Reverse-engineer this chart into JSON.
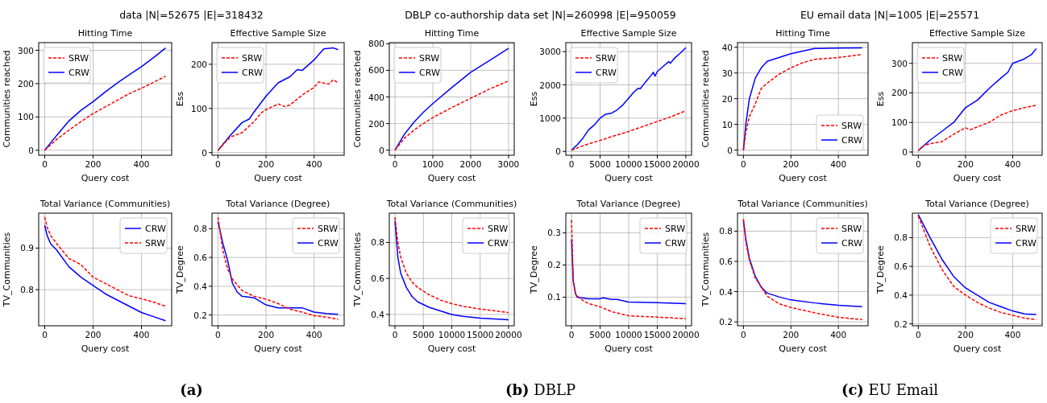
{
  "chart_data": [
    {
      "type": "line",
      "title": "Hitting Time",
      "xlabel": "Query cost",
      "ylabel": "Communities reached",
      "annotations": [
        "data |N|=52675 |E|=318432"
      ],
      "xlim": [
        -25,
        525
      ],
      "xticks": [
        0,
        200,
        400
      ],
      "ylim": [
        -15,
        323
      ],
      "yticks": [
        0,
        100,
        200,
        300
      ],
      "grid": true,
      "legend": "top left",
      "series": [
        {
          "name": "SRW",
          "color": "#ff0000",
          "line_style": "dashed",
          "x": [
            0,
            50,
            100,
            150,
            200,
            250,
            300,
            350,
            400,
            450,
            500
          ],
          "values": [
            0,
            33,
            60,
            86,
            110,
            130,
            150,
            170,
            186,
            204,
            222
          ]
        },
        {
          "name": "CRW",
          "color": "#0000ff",
          "line_style": "solid",
          "x": [
            0,
            50,
            100,
            150,
            200,
            250,
            300,
            350,
            400,
            450,
            500
          ],
          "values": [
            0,
            45,
            88,
            120,
            146,
            175,
            202,
            227,
            251,
            278,
            307
          ]
        }
      ]
    },
    {
      "type": "line",
      "title": "Effective Sample Size",
      "xlabel": "Query cost",
      "ylabel": "Ess",
      "xlim": [
        -25,
        525
      ],
      "xticks": [
        0,
        200,
        400
      ],
      "ylim": [
        -6,
        249
      ],
      "yticks": [
        0,
        100,
        200
      ],
      "grid": true,
      "legend": "top left",
      "series": [
        {
          "name": "SRW",
          "color": "#ff0000",
          "line_style": "dashed",
          "x": [
            0,
            50,
            100,
            150,
            180,
            200,
            250,
            280,
            300,
            350,
            400,
            420,
            460,
            480,
            500
          ],
          "values": [
            5,
            35,
            45,
            70,
            90,
            97,
            110,
            104,
            108,
            130,
            148,
            160,
            155,
            165,
            158
          ]
        },
        {
          "name": "CRW",
          "color": "#0000ff",
          "line_style": "solid",
          "x": [
            0,
            50,
            100,
            130,
            150,
            200,
            250,
            300,
            330,
            350,
            400,
            440,
            480,
            500
          ],
          "values": [
            5,
            38,
            68,
            76,
            92,
            128,
            158,
            172,
            188,
            186,
            210,
            235,
            237,
            233
          ]
        }
      ]
    },
    {
      "type": "line",
      "title": "Hitting Time",
      "xlabel": "Query cost",
      "ylabel": "Communities reached",
      "annotations": [
        "DBLP co-authorship data set |N|=260998 |E|=950059"
      ],
      "xlim": [
        -150,
        3150
      ],
      "xticks": [
        0,
        1000,
        2000,
        3000
      ],
      "ylim": [
        -38,
        808
      ],
      "yticks": [
        0,
        200,
        400,
        600,
        800
      ],
      "grid": true,
      "legend": "top left",
      "series": [
        {
          "name": "SRW",
          "color": "#ff0000",
          "line_style": "dashed",
          "x": [
            0,
            250,
            500,
            750,
            1000,
            1500,
            2000,
            2500,
            3000
          ],
          "values": [
            0,
            90,
            150,
            200,
            245,
            320,
            390,
            460,
            520
          ]
        },
        {
          "name": "CRW",
          "color": "#0000ff",
          "line_style": "solid",
          "x": [
            0,
            250,
            500,
            750,
            1000,
            1500,
            2000,
            2500,
            3000
          ],
          "values": [
            0,
            120,
            210,
            285,
            350,
            470,
            585,
            675,
            765
          ]
        }
      ]
    },
    {
      "type": "line",
      "title": "Effective Sample Size",
      "xlabel": "Query cost",
      "ylabel": "Ess",
      "xlim": [
        -1000,
        21000
      ],
      "xticks": [
        0,
        5000,
        10000,
        15000,
        20000
      ],
      "ylim": [
        -115,
        3270
      ],
      "yticks": [
        0,
        1000,
        2000,
        3000
      ],
      "grid": true,
      "legend": "top left",
      "series": [
        {
          "name": "SRW",
          "color": "#ff0000",
          "line_style": "dashed",
          "x": [
            0,
            2500,
            5000,
            7500,
            10000,
            12500,
            15000,
            17500,
            20000
          ],
          "values": [
            40,
            200,
            330,
            470,
            600,
            750,
            900,
            1050,
            1220
          ]
        },
        {
          "name": "CRW",
          "color": "#0000ff",
          "line_style": "solid",
          "x": [
            0,
            1000,
            2000,
            3000,
            4000,
            5000,
            6000,
            7000,
            8000,
            9000,
            10000,
            11000,
            11700,
            12000,
            13000,
            14000,
            14300,
            14600,
            15000,
            16000,
            17000,
            17300,
            18000,
            19000,
            20000
          ],
          "values": [
            40,
            200,
            400,
            650,
            800,
            1000,
            1120,
            1150,
            1250,
            1400,
            1600,
            1800,
            1900,
            1880,
            2100,
            2300,
            2380,
            2260,
            2400,
            2550,
            2700,
            2650,
            2800,
            2950,
            3120
          ]
        }
      ]
    },
    {
      "type": "line",
      "title": "Hitting Time",
      "xlabel": "Query cost",
      "ylabel": "Communities reached",
      "annotations": [
        "EU email data |N|=1005 |E|=25571"
      ],
      "xlim": [
        -25,
        525
      ],
      "xticks": [
        0,
        200,
        400
      ],
      "ylim": [
        -2,
        41.8
      ],
      "yticks": [
        0,
        10,
        20,
        30,
        40
      ],
      "grid": true,
      "legend": "bottom right",
      "series": [
        {
          "name": "SRW",
          "color": "#ff0000",
          "line_style": "dashed",
          "x": [
            0,
            10,
            25,
            50,
            75,
            100,
            150,
            200,
            250,
            300,
            400,
            500
          ],
          "values": [
            0,
            7,
            13,
            18,
            24,
            26,
            29.5,
            32,
            34,
            35.3,
            36,
            37.2
          ]
        },
        {
          "name": "CRW",
          "color": "#0000ff",
          "line_style": "solid",
          "x": [
            0,
            10,
            25,
            50,
            75,
            100,
            150,
            200,
            250,
            300,
            400,
            500
          ],
          "values": [
            0,
            10,
            20,
            28,
            32,
            34.5,
            36,
            37.5,
            38.5,
            39.5,
            39.7,
            39.8
          ]
        }
      ]
    },
    {
      "type": "line",
      "title": "Effective Sample Size",
      "xlabel": "Query cost",
      "ylabel": "Ess",
      "xlim": [
        -25,
        525
      ],
      "xticks": [
        0,
        200,
        400
      ],
      "ylim": [
        -11,
        370
      ],
      "yticks": [
        0,
        100,
        200,
        300
      ],
      "grid": true,
      "legend": "top left",
      "series": [
        {
          "name": "SRW",
          "color": "#ff0000",
          "line_style": "dashed",
          "x": [
            0,
            25,
            50,
            100,
            150,
            200,
            220,
            250,
            300,
            350,
            400,
            450,
            500
          ],
          "values": [
            5,
            22,
            28,
            35,
            60,
            82,
            75,
            85,
            100,
            125,
            140,
            150,
            158
          ]
        },
        {
          "name": "CRW",
          "color": "#0000ff",
          "line_style": "solid",
          "x": [
            0,
            50,
            100,
            150,
            200,
            250,
            300,
            350,
            380,
            400,
            450,
            480,
            500
          ],
          "values": [
            5,
            40,
            70,
            100,
            150,
            175,
            215,
            250,
            270,
            300,
            315,
            330,
            350
          ]
        }
      ]
    },
    {
      "type": "line",
      "title": "Total Variance (Communities)",
      "xlabel": "Query cost",
      "ylabel": "TV_Communities",
      "annotations": [
        "(a)"
      ],
      "xlim": [
        -25,
        525
      ],
      "xticks": [
        0,
        200,
        400
      ],
      "ylim": [
        0.713,
        0.984
      ],
      "yticks": [
        0.8,
        0.9
      ],
      "grid": true,
      "legend": "top right",
      "series": [
        {
          "name": "CRW",
          "color": "#0000ff",
          "line_style": "solid",
          "x": [
            0,
            10,
            25,
            50,
            100,
            150,
            200,
            250,
            300,
            350,
            400,
            450,
            500
          ],
          "values": [
            0.955,
            0.93,
            0.91,
            0.895,
            0.855,
            0.83,
            0.81,
            0.79,
            0.775,
            0.76,
            0.745,
            0.735,
            0.725
          ]
        },
        {
          "name": "SRW",
          "color": "#ff0000",
          "line_style": "dashed",
          "x": [
            0,
            10,
            25,
            50,
            100,
            150,
            200,
            250,
            300,
            350,
            400,
            450,
            500
          ],
          "values": [
            0.975,
            0.95,
            0.93,
            0.91,
            0.875,
            0.86,
            0.83,
            0.815,
            0.8,
            0.785,
            0.778,
            0.77,
            0.76
          ]
        }
      ]
    },
    {
      "type": "line",
      "title": "Total Variance (Degree)",
      "xlabel": "Query cost",
      "ylabel": "TV_Degree",
      "xlim": [
        -25,
        525
      ],
      "xticks": [
        0,
        200,
        400
      ],
      "ylim": [
        0.125,
        0.908
      ],
      "yticks": [
        0.2,
        0.4,
        0.6,
        0.8
      ],
      "grid": true,
      "legend": "top right",
      "series": [
        {
          "name": "SRW",
          "color": "#ff0000",
          "line_style": "dashed",
          "x": [
            0,
            20,
            40,
            60,
            100,
            150,
            200,
            250,
            300,
            350,
            400,
            450,
            500
          ],
          "values": [
            0.88,
            0.65,
            0.52,
            0.45,
            0.37,
            0.33,
            0.31,
            0.28,
            0.24,
            0.22,
            0.195,
            0.185,
            0.17
          ]
        },
        {
          "name": "CRW",
          "color": "#0000ff",
          "line_style": "solid",
          "x": [
            0,
            20,
            40,
            60,
            80,
            100,
            150,
            200,
            250,
            300,
            350,
            400,
            450,
            500
          ],
          "values": [
            0.85,
            0.7,
            0.58,
            0.42,
            0.36,
            0.33,
            0.32,
            0.27,
            0.25,
            0.25,
            0.25,
            0.22,
            0.21,
            0.205
          ]
        }
      ]
    },
    {
      "type": "line",
      "title": "Total Variance (Communities)",
      "xlabel": "Query cost",
      "ylabel": "TV_Communities",
      "annotations": [
        "(b) DBLP"
      ],
      "xlim": [
        -1000,
        21000
      ],
      "xticks": [
        0,
        5000,
        10000,
        15000,
        20000
      ],
      "ylim": [
        0.337,
        0.963
      ],
      "yticks": [
        0.4,
        0.6,
        0.8
      ],
      "grid": true,
      "legend": "top right",
      "series": [
        {
          "name": "SRW",
          "color": "#ff0000",
          "line_style": "dashed",
          "x": [
            0,
            500,
            1000,
            2000,
            3000,
            4000,
            6000,
            8000,
            10000,
            12000,
            15000,
            20000
          ],
          "values": [
            0.94,
            0.8,
            0.72,
            0.63,
            0.58,
            0.55,
            0.51,
            0.48,
            0.46,
            0.445,
            0.43,
            0.41
          ]
        },
        {
          "name": "CRW",
          "color": "#0000ff",
          "line_style": "solid",
          "x": [
            0,
            500,
            1000,
            2000,
            3000,
            4000,
            6000,
            8000,
            10000,
            12000,
            15000,
            20000
          ],
          "values": [
            0.92,
            0.72,
            0.63,
            0.55,
            0.5,
            0.47,
            0.44,
            0.42,
            0.4,
            0.39,
            0.38,
            0.37
          ]
        }
      ]
    },
    {
      "type": "line",
      "title": "Total Variance (Degree)",
      "xlabel": "Query cost",
      "ylabel": "TV_Degree",
      "xlim": [
        -1000,
        21000
      ],
      "xticks": [
        0,
        5000,
        10000,
        15000,
        20000
      ],
      "ylim": [
        0.011,
        0.361
      ],
      "yticks": [
        0.1,
        0.2,
        0.3
      ],
      "grid": true,
      "legend": "top right",
      "series": [
        {
          "name": "SRW",
          "color": "#ff0000",
          "line_style": "dashed",
          "x": [
            0,
            300,
            700,
            1500,
            3000,
            5000,
            7000,
            10000,
            15000,
            20000
          ],
          "values": [
            0.34,
            0.15,
            0.11,
            0.095,
            0.08,
            0.07,
            0.055,
            0.042,
            0.038,
            0.033
          ]
        },
        {
          "name": "CRW",
          "color": "#0000ff",
          "line_style": "solid",
          "x": [
            0,
            300,
            700,
            1000,
            3000,
            5000,
            5500,
            7000,
            8000,
            10000,
            15000,
            20000
          ],
          "values": [
            0.28,
            0.15,
            0.11,
            0.1,
            0.095,
            0.095,
            0.098,
            0.093,
            0.093,
            0.085,
            0.083,
            0.08
          ]
        }
      ]
    },
    {
      "type": "line",
      "title": "Total Variance (Communities)",
      "xlabel": "Query cost",
      "ylabel": "TV_Communities",
      "annotations": [
        "(c) EU Email"
      ],
      "xlim": [
        -25,
        525
      ],
      "xticks": [
        0,
        200,
        400
      ],
      "ylim": [
        0.174,
        0.919
      ],
      "yticks": [
        0.2,
        0.4,
        0.6,
        0.8
      ],
      "grid": true,
      "legend": "top right",
      "series": [
        {
          "name": "SRW",
          "color": "#ff0000",
          "line_style": "dashed",
          "x": [
            0,
            10,
            25,
            50,
            75,
            100,
            150,
            200,
            300,
            400,
            500
          ],
          "values": [
            0.88,
            0.73,
            0.61,
            0.49,
            0.43,
            0.37,
            0.32,
            0.295,
            0.26,
            0.23,
            0.215
          ]
        },
        {
          "name": "CRW",
          "color": "#0000ff",
          "line_style": "solid",
          "x": [
            0,
            10,
            25,
            50,
            75,
            100,
            150,
            200,
            300,
            400,
            500
          ],
          "values": [
            0.87,
            0.75,
            0.62,
            0.5,
            0.43,
            0.39,
            0.365,
            0.345,
            0.325,
            0.31,
            0.3
          ]
        }
      ]
    },
    {
      "type": "line",
      "title": "Total Variance (Degree)",
      "xlabel": "Query cost",
      "ylabel": "TV_Degree",
      "xlim": [
        -25,
        525
      ],
      "xticks": [
        0,
        200,
        400
      ],
      "ylim": [
        0.187,
        0.97
      ],
      "yticks": [
        0.2,
        0.4,
        0.6,
        0.8
      ],
      "grid": true,
      "legend": "top right",
      "series": [
        {
          "name": "SRW",
          "color": "#ff0000",
          "line_style": "dashed",
          "x": [
            0,
            50,
            100,
            150,
            200,
            250,
            300,
            350,
            400,
            450,
            500
          ],
          "values": [
            0.95,
            0.74,
            0.58,
            0.46,
            0.4,
            0.35,
            0.31,
            0.28,
            0.26,
            0.24,
            0.23
          ]
        },
        {
          "name": "CRW",
          "color": "#0000ff",
          "line_style": "solid",
          "x": [
            0,
            50,
            100,
            150,
            200,
            250,
            300,
            350,
            400,
            450,
            500
          ],
          "values": [
            0.96,
            0.8,
            0.65,
            0.53,
            0.45,
            0.4,
            0.35,
            0.32,
            0.29,
            0.27,
            0.265
          ]
        }
      ]
    }
  ]
}
